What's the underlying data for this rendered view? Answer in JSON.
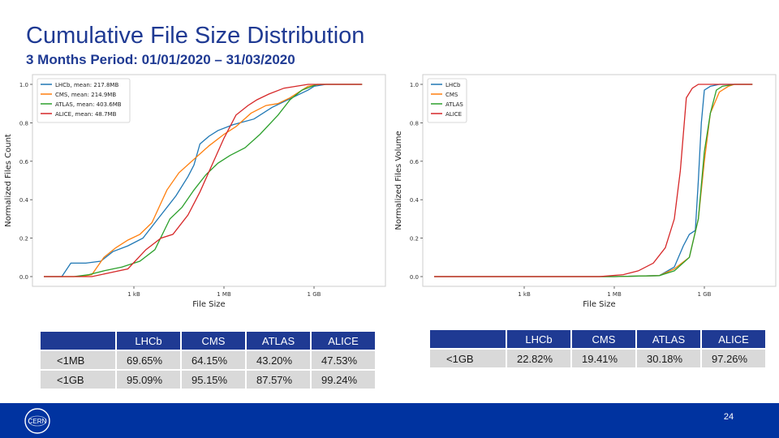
{
  "title": "Cumulative File Size Distribution",
  "subtitle": "3 Months Period: 01/01/2020 – 31/03/2020",
  "colors": {
    "lhcb": "#1f77b4",
    "cms": "#ff7f0e",
    "atlas": "#2ca02c",
    "alice": "#d62728",
    "header_blue": "#1f3a93",
    "footer_blue": "#0033a0"
  },
  "chart_data": [
    {
      "type": "line",
      "xlabel": "File Size",
      "ylabel": "Normalized Files Count",
      "xscale": "log",
      "xticks": [
        {
          "value": 1000,
          "label": "1 kB"
        },
        {
          "value": 1000000,
          "label": "1 MB"
        },
        {
          "value": 1000000000,
          "label": "1 GB"
        }
      ],
      "xlim": [
        1,
        100000000000
      ],
      "ylim": [
        0,
        1.0
      ],
      "yticks": [
        "0.0",
        "0.2",
        "0.4",
        "0.6",
        "0.8",
        "1.0"
      ],
      "legend_position": "top-left",
      "series": [
        {
          "name": "LHCb, mean: 217.8MB",
          "color": "#1f77b4",
          "points": [
            [
              0,
              0
            ],
            [
              0.6,
              0
            ],
            [
              0.9,
              0.07
            ],
            [
              1.4,
              0.07
            ],
            [
              1.9,
              0.08
            ],
            [
              2.3,
              0.13
            ],
            [
              2.8,
              0.16
            ],
            [
              3.3,
              0.2
            ],
            [
              3.8,
              0.3
            ],
            [
              4.4,
              0.42
            ],
            [
              4.8,
              0.52
            ],
            [
              5.0,
              0.58
            ],
            [
              5.2,
              0.69
            ],
            [
              5.5,
              0.73
            ],
            [
              5.8,
              0.76
            ],
            [
              6.3,
              0.79
            ],
            [
              7.0,
              0.82
            ],
            [
              7.6,
              0.88
            ],
            [
              8.0,
              0.91
            ],
            [
              8.4,
              0.94
            ],
            [
              8.8,
              0.97
            ],
            [
              9.0,
              0.99
            ],
            [
              9.4,
              1.0
            ],
            [
              10.6,
              1.0
            ]
          ]
        },
        {
          "name": "CMS, mean: 214.9MB",
          "color": "#ff7f0e",
          "points": [
            [
              0,
              0
            ],
            [
              1.2,
              0
            ],
            [
              1.6,
              0.01
            ],
            [
              2.0,
              0.1
            ],
            [
              2.4,
              0.15
            ],
            [
              2.8,
              0.19
            ],
            [
              3.2,
              0.22
            ],
            [
              3.6,
              0.28
            ],
            [
              4.1,
              0.45
            ],
            [
              4.5,
              0.54
            ],
            [
              5.0,
              0.61
            ],
            [
              5.5,
              0.68
            ],
            [
              6.0,
              0.74
            ],
            [
              6.4,
              0.78
            ],
            [
              6.9,
              0.85
            ],
            [
              7.4,
              0.89
            ],
            [
              7.8,
              0.9
            ],
            [
              8.2,
              0.93
            ],
            [
              8.8,
              0.99
            ],
            [
              9.2,
              1.0
            ],
            [
              10.6,
              1.0
            ]
          ]
        },
        {
          "name": "ATLAS, mean: 403.6MB",
          "color": "#2ca02c",
          "points": [
            [
              0,
              0
            ],
            [
              1.0,
              0
            ],
            [
              1.5,
              0.01
            ],
            [
              2.0,
              0.03
            ],
            [
              2.6,
              0.05
            ],
            [
              3.2,
              0.08
            ],
            [
              3.7,
              0.14
            ],
            [
              4.2,
              0.3
            ],
            [
              4.6,
              0.36
            ],
            [
              5.0,
              0.45
            ],
            [
              5.4,
              0.53
            ],
            [
              5.8,
              0.59
            ],
            [
              6.2,
              0.63
            ],
            [
              6.7,
              0.67
            ],
            [
              7.2,
              0.74
            ],
            [
              7.8,
              0.84
            ],
            [
              8.2,
              0.92
            ],
            [
              8.6,
              0.97
            ],
            [
              9.1,
              1.0
            ],
            [
              10.6,
              1.0
            ]
          ]
        },
        {
          "name": "ALICE, mean: 48.7MB",
          "color": "#d62728",
          "points": [
            [
              0,
              0
            ],
            [
              1.6,
              0
            ],
            [
              2.2,
              0.02
            ],
            [
              2.8,
              0.04
            ],
            [
              3.4,
              0.14
            ],
            [
              3.9,
              0.2
            ],
            [
              4.3,
              0.22
            ],
            [
              4.8,
              0.32
            ],
            [
              5.2,
              0.44
            ],
            [
              5.6,
              0.58
            ],
            [
              6.0,
              0.72
            ],
            [
              6.4,
              0.84
            ],
            [
              6.8,
              0.89
            ],
            [
              7.1,
              0.92
            ],
            [
              7.5,
              0.95
            ],
            [
              8.0,
              0.98
            ],
            [
              8.4,
              0.99
            ],
            [
              8.8,
              1.0
            ],
            [
              10.6,
              1.0
            ]
          ]
        }
      ]
    },
    {
      "type": "line",
      "xlabel": "File Size",
      "ylabel": "Normalized Files Volume",
      "xscale": "log",
      "xticks": [
        {
          "value": 1000,
          "label": "1 kB"
        },
        {
          "value": 1000000,
          "label": "1 MB"
        },
        {
          "value": 1000000000,
          "label": "1 GB"
        }
      ],
      "xlim": [
        1,
        100000000000
      ],
      "ylim": [
        0,
        1.0
      ],
      "yticks": [
        "0.0",
        "0.2",
        "0.4",
        "0.6",
        "0.8",
        "1.0"
      ],
      "legend_position": "top-left",
      "series": [
        {
          "name": "LHCb",
          "color": "#1f77b4",
          "points": [
            [
              0,
              0
            ],
            [
              6.0,
              0
            ],
            [
              7.5,
              0.005
            ],
            [
              8.0,
              0.05
            ],
            [
              8.3,
              0.16
            ],
            [
              8.5,
              0.22
            ],
            [
              8.7,
              0.24
            ],
            [
              8.8,
              0.5
            ],
            [
              8.9,
              0.8
            ],
            [
              9.0,
              0.97
            ],
            [
              9.2,
              0.99
            ],
            [
              9.5,
              1.0
            ],
            [
              10.6,
              1.0
            ]
          ]
        },
        {
          "name": "CMS",
          "color": "#ff7f0e",
          "points": [
            [
              0,
              0
            ],
            [
              6.0,
              0
            ],
            [
              7.5,
              0.005
            ],
            [
              8.0,
              0.04
            ],
            [
              8.5,
              0.1
            ],
            [
              8.8,
              0.3
            ],
            [
              9.0,
              0.6
            ],
            [
              9.2,
              0.85
            ],
            [
              9.5,
              0.96
            ],
            [
              9.8,
              0.99
            ],
            [
              10.0,
              1.0
            ],
            [
              10.6,
              1.0
            ]
          ]
        },
        {
          "name": "ATLAS",
          "color": "#2ca02c",
          "points": [
            [
              0,
              0
            ],
            [
              6.0,
              0
            ],
            [
              7.5,
              0.005
            ],
            [
              8.0,
              0.03
            ],
            [
              8.5,
              0.1
            ],
            [
              8.8,
              0.3
            ],
            [
              9.0,
              0.65
            ],
            [
              9.2,
              0.85
            ],
            [
              9.4,
              0.97
            ],
            [
              9.6,
              0.99
            ],
            [
              10.0,
              1.0
            ],
            [
              10.6,
              1.0
            ]
          ]
        },
        {
          "name": "ALICE",
          "color": "#d62728",
          "points": [
            [
              0,
              0
            ],
            [
              5.5,
              0
            ],
            [
              6.3,
              0.01
            ],
            [
              6.8,
              0.03
            ],
            [
              7.3,
              0.07
            ],
            [
              7.7,
              0.15
            ],
            [
              8.0,
              0.3
            ],
            [
              8.2,
              0.55
            ],
            [
              8.4,
              0.93
            ],
            [
              8.6,
              0.98
            ],
            [
              8.8,
              1.0
            ],
            [
              10.6,
              1.0
            ]
          ]
        }
      ]
    }
  ],
  "table_left": {
    "headers": [
      "LHCb",
      "CMS",
      "ATLAS",
      "ALICE"
    ],
    "rows": [
      {
        "label": "<1MB",
        "values": [
          "69.65%",
          "64.15%",
          "43.20%",
          "47.53%"
        ]
      },
      {
        "label": "<1GB",
        "values": [
          "95.09%",
          "95.15%",
          "87.57%",
          "99.24%"
        ]
      }
    ]
  },
  "table_right": {
    "headers": [
      "LHCb",
      "CMS",
      "ATLAS",
      "ALICE"
    ],
    "rows": [
      {
        "label": "<1GB",
        "values": [
          "22.82%",
          "19.41%",
          "30.18%",
          "97.26%"
        ]
      }
    ]
  },
  "footer": {
    "logo_text": "CERN",
    "page_number": "24"
  }
}
